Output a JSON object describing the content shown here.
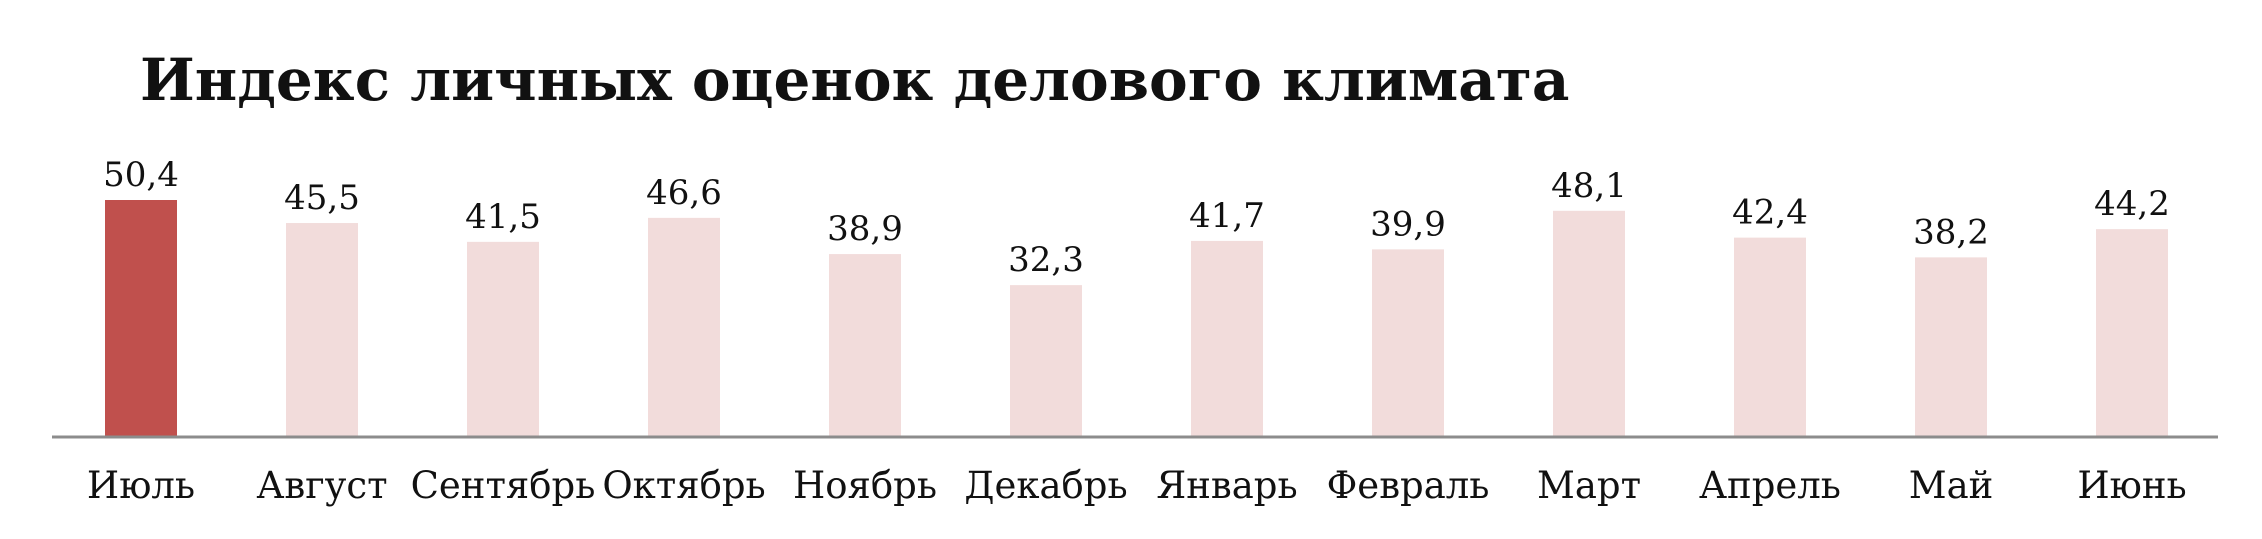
{
  "chart_data": {
    "type": "bar",
    "title": "Индекс личных оценок делового климата",
    "xlabel": "",
    "ylabel": "",
    "categories": [
      "Июль",
      "Август",
      "Сентябрь",
      "Октябрь",
      "Ноябрь",
      "Декабрь",
      "Январь",
      "Февраль",
      "Март",
      "Апрель",
      "Май",
      "Июнь"
    ],
    "values": [
      50.4,
      45.5,
      41.5,
      46.6,
      38.9,
      32.3,
      41.7,
      39.9,
      48.1,
      42.4,
      38.2,
      44.2
    ],
    "value_labels": [
      "50,4",
      "45,5",
      "41,5",
      "46,6",
      "38,9",
      "32,3",
      "41,7",
      "39,9",
      "48,1",
      "42,4",
      "38,2",
      "44,2"
    ],
    "ylim": [
      0,
      50.4
    ],
    "grid": false,
    "legend": "none",
    "highlight_index": 0,
    "colors": {
      "highlight": "#c0504d",
      "bar": "#f2dcdb",
      "axis": "#8c8c8c"
    }
  }
}
